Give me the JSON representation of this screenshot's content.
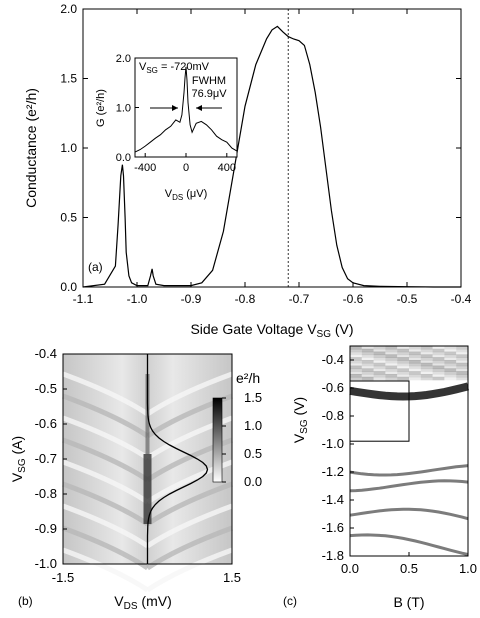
{
  "chart_data": [
    {
      "panel": "(a)",
      "type": "line",
      "xlabel": "Side Gate Voltage V",
      "xlabel_sub": "SG",
      "xlabel_unit": " (V)",
      "ylabel": "Conductance (e²/h)",
      "xlim": [
        -1.1,
        -0.4
      ],
      "ylim": [
        0.0,
        2.0
      ],
      "xticks": [
        "-1.1",
        "-1.0",
        "-0.9",
        "-0.8",
        "-0.7",
        "-0.6",
        "-0.5",
        "-0.4"
      ],
      "yticks": [
        "0.0",
        "0.5",
        "1.0",
        "1.5",
        "2.0"
      ],
      "marker_x": -0.72,
      "series": [
        {
          "x": [
            -1.1,
            -1.06,
            -1.04,
            -1.035,
            -1.03,
            -1.027,
            -1.025,
            -1.022,
            -1.02,
            -1.015,
            -1.01,
            -1.0,
            -0.98,
            -0.975,
            -0.972,
            -0.97,
            -0.965,
            -0.95,
            -0.9,
            -0.88,
            -0.86,
            -0.84,
            -0.82,
            -0.8,
            -0.78,
            -0.76,
            -0.75,
            -0.74,
            -0.73,
            -0.72,
            -0.71,
            -0.7,
            -0.69,
            -0.68,
            -0.67,
            -0.66,
            -0.65,
            -0.64,
            -0.63,
            -0.62,
            -0.61,
            -0.6,
            -0.58,
            -0.55,
            -0.5,
            -0.45,
            -0.4
          ],
          "y": [
            0.0,
            0.02,
            0.15,
            0.45,
            0.8,
            0.88,
            0.8,
            0.5,
            0.25,
            0.08,
            0.03,
            0.01,
            0.01,
            0.08,
            0.13,
            0.08,
            0.02,
            0.01,
            0.01,
            0.03,
            0.12,
            0.4,
            0.85,
            1.3,
            1.6,
            1.78,
            1.83,
            1.86,
            1.84,
            1.82,
            1.8,
            1.77,
            1.72,
            1.6,
            1.4,
            1.15,
            0.85,
            0.55,
            0.3,
            0.14,
            0.06,
            0.03,
            0.01,
            0.005,
            0.002,
            0.0,
            0.0
          ]
        }
      ],
      "inset": {
        "title": "V",
        "title_sub": "SG",
        "title_value": " = -720mV",
        "annotation_line1": "FWHM",
        "annotation_line2": "76.9μV",
        "xlabel": "V",
        "xlabel_sub": "DS",
        "xlabel_unit": " (μV)",
        "ylabel": "G (e²/h)",
        "xlim": [
          -500,
          500
        ],
        "ylim": [
          0.0,
          2.0
        ],
        "xticks": [
          "-400",
          "0",
          "400"
        ],
        "yticks": [
          "0.0",
          "1.0",
          "2.0"
        ],
        "x": [
          -500,
          -450,
          -400,
          -350,
          -300,
          -250,
          -200,
          -150,
          -100,
          -60,
          -40,
          -20,
          -10,
          0,
          10,
          20,
          40,
          60,
          100,
          150,
          200,
          250,
          300,
          350,
          400,
          450,
          500
        ],
        "y": [
          0.1,
          0.15,
          0.22,
          0.3,
          0.38,
          0.45,
          0.55,
          0.62,
          0.75,
          0.7,
          0.85,
          1.3,
          1.6,
          1.82,
          1.55,
          1.1,
          0.65,
          0.5,
          0.68,
          0.72,
          0.65,
          0.55,
          0.42,
          0.35,
          0.3,
          0.18,
          0.12
        ]
      }
    },
    {
      "panel": "(b)",
      "type": "heatmap",
      "xlabel": "V",
      "xlabel_sub": "DS",
      "xlabel_unit": " (mV)",
      "ylabel": "V",
      "ylabel_sub": "SG",
      "ylabel_unit": " (A)",
      "xlim": [
        -1.5,
        1.5
      ],
      "ylim": [
        -1.0,
        -0.4
      ],
      "xticks": [
        "-1.5",
        "1.5"
      ],
      "yticks": [
        "-0.4",
        "-0.5",
        "-0.6",
        "-0.7",
        "-0.8",
        "-0.9",
        "-1.0"
      ],
      "colorbar_unit": "e²/h",
      "colorbar_ticks": [
        "1.5",
        "1.0",
        "0.5",
        "0.0"
      ],
      "colorbar_range": [
        0.0,
        1.5
      ]
    },
    {
      "panel": "(c)",
      "type": "heatmap",
      "xlabel": "B (T)",
      "ylabel": "V",
      "ylabel_sub": "SG",
      "ylabel_unit": " (V)",
      "xlim": [
        0.0,
        1.0
      ],
      "ylim": [
        -1.8,
        -0.3
      ],
      "xticks": [
        "0.0",
        "0.5",
        "1.0"
      ],
      "yticks": [
        "-0.4",
        "-0.6",
        "-0.8",
        "-1.0",
        "-1.2",
        "-1.4",
        "-1.6",
        "-1.8"
      ],
      "box_B": [
        0.0,
        0.5
      ],
      "box_VSG": [
        -0.55,
        -0.98
      ]
    }
  ]
}
